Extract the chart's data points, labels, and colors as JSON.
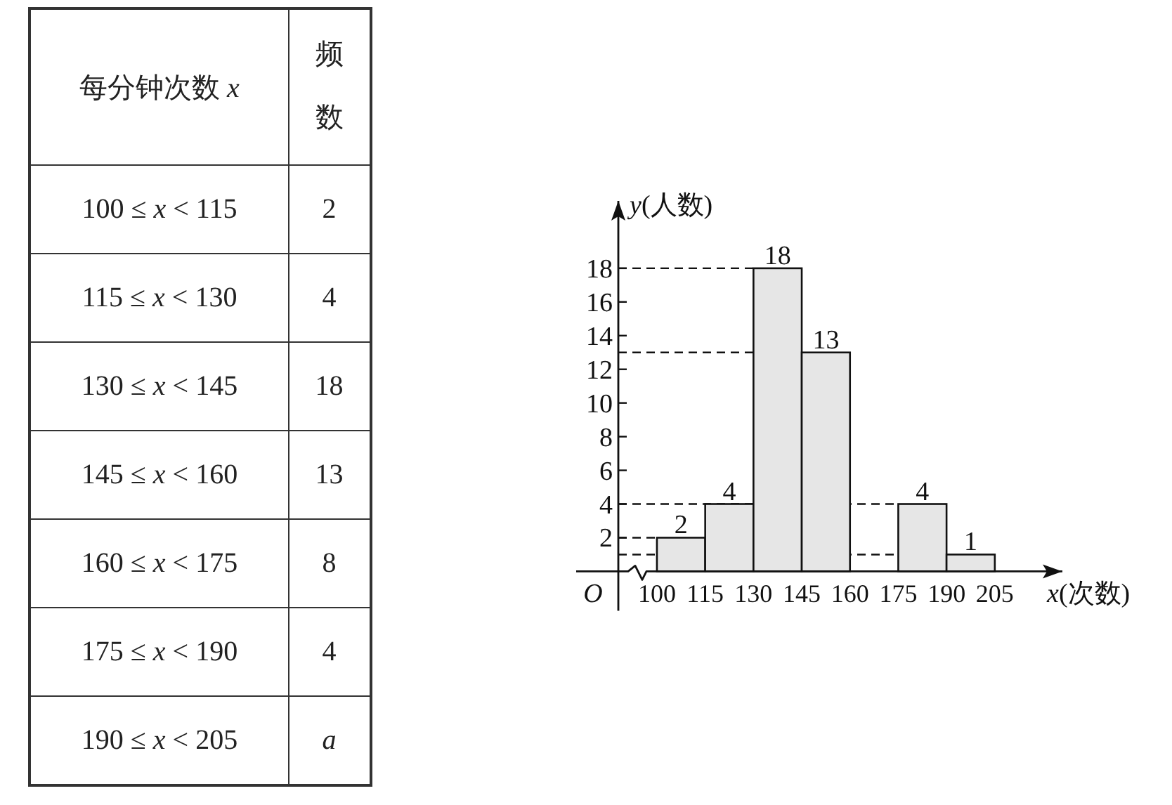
{
  "chart_data": [
    {
      "type": "other",
      "xlabel": "每分钟次数 *x*",
      "ylabel": "频数",
      "categories": [
        "100 ≤ *x* < 115",
        "115 ≤ *x* < 130",
        "130 ≤ *x* < 145",
        "145 ≤ *x* < 160",
        "160 ≤ *x* < 175",
        "175 ≤ *x* < 190",
        "190 ≤ *x* < 205"
      ],
      "values": [
        2,
        4,
        18,
        13,
        8,
        4,
        null
      ],
      "value_labels": [
        "2",
        "4",
        "18",
        "13",
        "8",
        "4",
        "*a*"
      ]
    },
    {
      "type": "histogram",
      "bins": [
        100,
        115,
        130,
        145,
        160,
        175,
        190,
        205
      ],
      "values": [
        2,
        4,
        18,
        13,
        null,
        4,
        1
      ],
      "color": "#e6e6e6",
      "xlabel": "*x*(次数)",
      "ylabel": "*y*(人数)",
      "xlim": [
        88,
        226
      ],
      "ylim": [
        0,
        22
      ],
      "xticks": [
        100,
        115,
        130,
        145,
        160,
        175,
        190,
        205
      ],
      "yticks": [
        2,
        4,
        6,
        8,
        10,
        12,
        14,
        16,
        18
      ],
      "data_labels": true,
      "ref_lines": [
        {
          "axis": "y",
          "value": 18,
          "line_style": "dashed"
        },
        {
          "axis": "y",
          "value": 13,
          "line_style": "dashed"
        },
        {
          "axis": "y",
          "value": 4,
          "line_style": "dashed"
        },
        {
          "axis": "y",
          "value": 2,
          "line_style": "dashed"
        },
        {
          "axis": "y",
          "value": 1,
          "line_style": "dashed"
        }
      ],
      "annotations": [
        "O"
      ]
    }
  ]
}
